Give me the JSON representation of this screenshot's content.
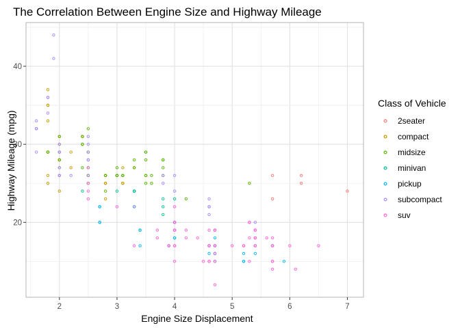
{
  "chart_data": {
    "type": "scatter",
    "title": "The Correlation Between Engine Size and Highway Mileage",
    "xlabel": "Engine Size Displacement",
    "ylabel": "Highway Mileage (mpg)",
    "xlim": [
      1.42,
      7.28
    ],
    "ylim": [
      10.4,
      45.6
    ],
    "xticks": [
      2,
      3,
      4,
      5,
      6,
      7
    ],
    "yticks": [
      20,
      30,
      40
    ],
    "grid": true,
    "legend": {
      "title": "Class of Vehicle",
      "placement": "right"
    },
    "series": [
      {
        "name": "2seater",
        "color": "#F8766D",
        "points": [
          [
            5.7,
            26
          ],
          [
            5.7,
            23
          ],
          [
            6.2,
            26
          ],
          [
            6.2,
            25
          ],
          [
            7.0,
            24
          ]
        ]
      },
      {
        "name": "compact",
        "color": "#C49A00",
        "points": [
          [
            1.8,
            29
          ],
          [
            1.8,
            29
          ],
          [
            2.0,
            31
          ],
          [
            2.0,
            30
          ],
          [
            2.8,
            26
          ],
          [
            2.8,
            26
          ],
          [
            3.1,
            27
          ],
          [
            1.8,
            26
          ],
          [
            1.8,
            25
          ],
          [
            2.0,
            28
          ],
          [
            2.0,
            27
          ],
          [
            2.8,
            25
          ],
          [
            2.8,
            25
          ],
          [
            3.1,
            25
          ],
          [
            3.1,
            25
          ],
          [
            2.2,
            27
          ],
          [
            2.2,
            29
          ],
          [
            2.4,
            31
          ],
          [
            2.4,
            31
          ],
          [
            3.0,
            26
          ],
          [
            3.0,
            26
          ],
          [
            3.3,
            27
          ],
          [
            1.8,
            33
          ],
          [
            1.8,
            35
          ],
          [
            1.8,
            37
          ],
          [
            1.8,
            35
          ],
          [
            1.8,
            29
          ],
          [
            2.0,
            26
          ],
          [
            2.0,
            29
          ],
          [
            2.0,
            29
          ],
          [
            2.0,
            24
          ],
          [
            2.5,
            29
          ],
          [
            2.8,
            23
          ],
          [
            1.8,
            29
          ],
          [
            2.5,
            26
          ],
          [
            2.0,
            28
          ]
        ]
      },
      {
        "name": "midsize",
        "color": "#53B400",
        "points": [
          [
            1.8,
            29
          ],
          [
            2.0,
            31
          ],
          [
            2.8,
            26
          ],
          [
            2.8,
            26
          ],
          [
            3.1,
            26
          ],
          [
            3.1,
            26
          ],
          [
            4.2,
            23
          ],
          [
            2.4,
            27
          ],
          [
            2.4,
            30
          ],
          [
            3.1,
            26
          ],
          [
            3.5,
            29
          ],
          [
            3.6,
            26
          ],
          [
            5.3,
            25
          ],
          [
            2.4,
            31
          ],
          [
            2.4,
            30
          ],
          [
            3.5,
            28
          ],
          [
            3.5,
            26
          ],
          [
            2.5,
            29
          ],
          [
            2.5,
            32
          ],
          [
            3.3,
            28
          ],
          [
            3.0,
            26
          ],
          [
            3.0,
            26
          ],
          [
            3.5,
            29
          ],
          [
            3.5,
            26
          ],
          [
            3.0,
            27
          ],
          [
            3.0,
            26
          ],
          [
            3.3,
            27
          ],
          [
            3.8,
            26
          ],
          [
            3.8,
            28
          ],
          [
            1.8,
            29
          ],
          [
            2.0,
            28
          ],
          [
            2.8,
            24
          ],
          [
            3.6,
            25
          ],
          [
            3.8,
            27
          ],
          [
            3.8,
            28
          ],
          [
            2.5,
            26
          ],
          [
            2.5,
            27
          ],
          [
            2.5,
            25
          ],
          [
            3.3,
            24
          ],
          [
            3.5,
            25
          ]
        ]
      },
      {
        "name": "minivan",
        "color": "#00C094",
        "points": [
          [
            2.4,
            24
          ],
          [
            3.0,
            24
          ],
          [
            3.3,
            22
          ],
          [
            3.3,
            22
          ],
          [
            3.3,
            24
          ],
          [
            3.3,
            24
          ],
          [
            3.3,
            24
          ],
          [
            3.8,
            22
          ],
          [
            3.8,
            21
          ],
          [
            3.8,
            23
          ],
          [
            4.0,
            23
          ]
        ]
      },
      {
        "name": "pickup",
        "color": "#00B6EB",
        "points": [
          [
            2.7,
            20
          ],
          [
            2.7,
            22
          ],
          [
            3.4,
            19
          ],
          [
            3.4,
            17
          ],
          [
            3.9,
            17
          ],
          [
            4.7,
            17
          ],
          [
            4.7,
            17
          ],
          [
            4.7,
            16
          ],
          [
            5.2,
            15
          ],
          [
            5.2,
            16
          ],
          [
            5.9,
            15
          ],
          [
            3.9,
            17
          ],
          [
            4.7,
            17
          ],
          [
            4.7,
            16
          ],
          [
            5.7,
            17
          ],
          [
            4.0,
            20
          ],
          [
            4.0,
            19
          ],
          [
            4.6,
            17
          ],
          [
            4.6,
            17
          ],
          [
            5.4,
            16
          ],
          [
            5.4,
            17
          ],
          [
            4.6,
            16
          ],
          [
            4.7,
            15
          ],
          [
            2.7,
            20
          ],
          [
            4.0,
            20
          ],
          [
            4.0,
            18
          ],
          [
            4.7,
            18
          ],
          [
            5.2,
            15
          ],
          [
            5.7,
            17
          ],
          [
            2.7,
            22
          ],
          [
            3.4,
            19
          ],
          [
            4.0,
            18
          ]
        ]
      },
      {
        "name": "subcompact",
        "color": "#A58AFF",
        "points": [
          [
            3.8,
            26
          ],
          [
            3.8,
            25
          ],
          [
            4.0,
            26
          ],
          [
            4.0,
            24
          ],
          [
            4.6,
            21
          ],
          [
            4.6,
            22
          ],
          [
            4.6,
            23
          ],
          [
            4.6,
            22
          ],
          [
            5.4,
            20
          ],
          [
            1.6,
            33
          ],
          [
            1.6,
            32
          ],
          [
            1.6,
            32
          ],
          [
            1.6,
            29
          ],
          [
            1.6,
            32
          ],
          [
            1.8,
            34
          ],
          [
            1.8,
            36
          ],
          [
            1.8,
            36
          ],
          [
            2.0,
            29
          ],
          [
            2.0,
            26
          ],
          [
            2.0,
            27
          ],
          [
            2.0,
            30
          ],
          [
            2.5,
            31
          ],
          [
            2.5,
            26
          ],
          [
            2.2,
            26
          ],
          [
            2.5,
            28
          ],
          [
            2.5,
            30
          ],
          [
            1.9,
            44
          ],
          [
            1.9,
            41
          ],
          [
            2.0,
            29
          ],
          [
            2.0,
            26
          ],
          [
            2.5,
            28
          ],
          [
            2.5,
            29
          ],
          [
            3.3,
            22
          ]
        ]
      },
      {
        "name": "suv",
        "color": "#FB61D7",
        "points": [
          [
            5.3,
            20
          ],
          [
            5.3,
            15
          ],
          [
            5.3,
            20
          ],
          [
            5.7,
            17
          ],
          [
            6.0,
            17
          ],
          [
            5.7,
            15
          ],
          [
            5.7,
            15
          ],
          [
            6.5,
            17
          ],
          [
            3.7,
            19
          ],
          [
            3.7,
            18
          ],
          [
            3.9,
            17
          ],
          [
            3.9,
            17
          ],
          [
            4.7,
            19
          ],
          [
            4.7,
            19
          ],
          [
            4.7,
            12
          ],
          [
            4.7,
            17
          ],
          [
            5.2,
            17
          ],
          [
            5.2,
            17
          ],
          [
            4.0,
            17
          ],
          [
            4.0,
            19
          ],
          [
            4.6,
            17
          ],
          [
            4.6,
            19
          ],
          [
            4.6,
            15
          ],
          [
            4.6,
            17
          ],
          [
            5.4,
            17
          ],
          [
            5.4,
            17
          ],
          [
            4.0,
            20
          ],
          [
            4.7,
            17
          ],
          [
            5.7,
            14
          ],
          [
            6.1,
            14
          ],
          [
            4.0,
            15
          ],
          [
            4.2,
            18
          ],
          [
            4.4,
            18
          ],
          [
            4.6,
            15
          ],
          [
            5.3,
            18
          ],
          [
            5.4,
            19
          ],
          [
            4.0,
            22
          ],
          [
            4.0,
            17
          ],
          [
            4.0,
            19
          ],
          [
            4.6,
            17
          ],
          [
            5.0,
            17
          ],
          [
            5.4,
            18
          ],
          [
            5.4,
            19
          ],
          [
            5.4,
            18
          ],
          [
            5.6,
            18
          ],
          [
            5.7,
            17
          ],
          [
            3.0,
            22
          ],
          [
            2.5,
            25
          ],
          [
            2.5,
            23
          ],
          [
            2.5,
            27
          ],
          [
            4.0,
            19
          ],
          [
            4.0,
            20
          ],
          [
            4.7,
            19
          ],
          [
            4.7,
            16
          ],
          [
            4.7,
            15
          ],
          [
            5.7,
            18
          ],
          [
            2.5,
            24
          ],
          [
            3.3,
            17
          ],
          [
            4.2,
            19
          ],
          [
            4.5,
            15
          ],
          [
            5.4,
            19
          ],
          [
            5.4,
            18
          ]
        ]
      }
    ]
  }
}
